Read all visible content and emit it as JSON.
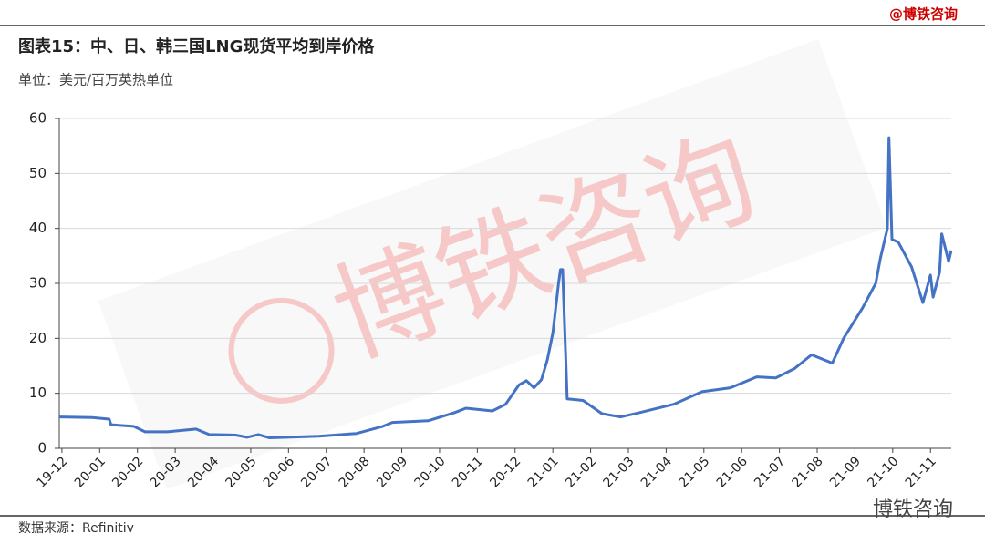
{
  "chart_data": {
    "type": "line",
    "title": "图表15：中、日、韩三国LNG现货平均到岸价格",
    "subtitle": "单位：美元/百万英热单位",
    "source": "数据来源：Refinitiv",
    "brand": "@博铁咨询",
    "watermark": "博铁咨询",
    "footer_brand": "博铁咨询",
    "x": [
      -0.07,
      0.8,
      1.25,
      1.3,
      1.9,
      2.2,
      2.8,
      3.55,
      3.9,
      4.6,
      4.9,
      5.2,
      5.5,
      6.8,
      7.8,
      8.5,
      8.75,
      9.7,
      10.4,
      10.7,
      11.4,
      11.75,
      12.1,
      12.3,
      12.5,
      12.7,
      12.85,
      13.0,
      13.15,
      13.2,
      13.26,
      13.38,
      13.8,
      14.3,
      14.8,
      15.3,
      16.2,
      16.95,
      17.7,
      18.4,
      18.9,
      19.4,
      19.85,
      20.4,
      20.7,
      21.2,
      21.55,
      21.67,
      21.86,
      21.9,
      21.98,
      22.15,
      22.5,
      22.8,
      23.0,
      23.07,
      23.24,
      23.3,
      23.48,
      23.55
    ],
    "series": [
      {
        "name": "LNG",
        "color": "#4472c4",
        "values": [
          5.7,
          5.6,
          5.3,
          4.3,
          4.0,
          3.0,
          3.0,
          3.5,
          2.5,
          2.4,
          2.0,
          2.5,
          1.9,
          2.2,
          2.7,
          4.0,
          4.7,
          5.0,
          6.5,
          7.3,
          6.8,
          8.0,
          11.5,
          12.3,
          11.0,
          12.5,
          16,
          21,
          30,
          32.5,
          32.5,
          9.0,
          8.7,
          6.3,
          5.7,
          6.5,
          8.0,
          10.3,
          11.0,
          13.0,
          12.8,
          14.5,
          17.0,
          15.5,
          20,
          25.5,
          30,
          34.5,
          40,
          56.5,
          38,
          37.5,
          33,
          26.5,
          31.5,
          27.5,
          32,
          39,
          34,
          36
        ]
      }
    ],
    "xlim": [
      -0.07,
      23.55
    ],
    "xticks": [
      {
        "value": 0,
        "label": "19-12"
      },
      {
        "value": 1,
        "label": "20-01"
      },
      {
        "value": 2,
        "label": "20-02"
      },
      {
        "value": 3,
        "label": "20-03"
      },
      {
        "value": 4,
        "label": "20-04"
      },
      {
        "value": 5,
        "label": "20-05"
      },
      {
        "value": 6,
        "label": "20-06"
      },
      {
        "value": 7,
        "label": "20-07"
      },
      {
        "value": 8,
        "label": "20-08"
      },
      {
        "value": 9,
        "label": "20-09"
      },
      {
        "value": 10,
        "label": "20-10"
      },
      {
        "value": 11,
        "label": "20-11"
      },
      {
        "value": 12,
        "label": "20-12"
      },
      {
        "value": 13,
        "label": "21-01"
      },
      {
        "value": 14,
        "label": "21-02"
      },
      {
        "value": 15,
        "label": "21-03"
      },
      {
        "value": 16,
        "label": "21-04"
      },
      {
        "value": 17,
        "label": "21-05"
      },
      {
        "value": 18,
        "label": "21-06"
      },
      {
        "value": 19,
        "label": "21-07"
      },
      {
        "value": 20,
        "label": "21-08"
      },
      {
        "value": 21,
        "label": "21-09"
      },
      {
        "value": 22,
        "label": "21-10"
      },
      {
        "value": 23,
        "label": "21-11"
      }
    ],
    "ylim": [
      0,
      60
    ],
    "yticks": [
      0,
      10,
      20,
      30,
      40,
      50,
      60
    ],
    "grid": true
  }
}
